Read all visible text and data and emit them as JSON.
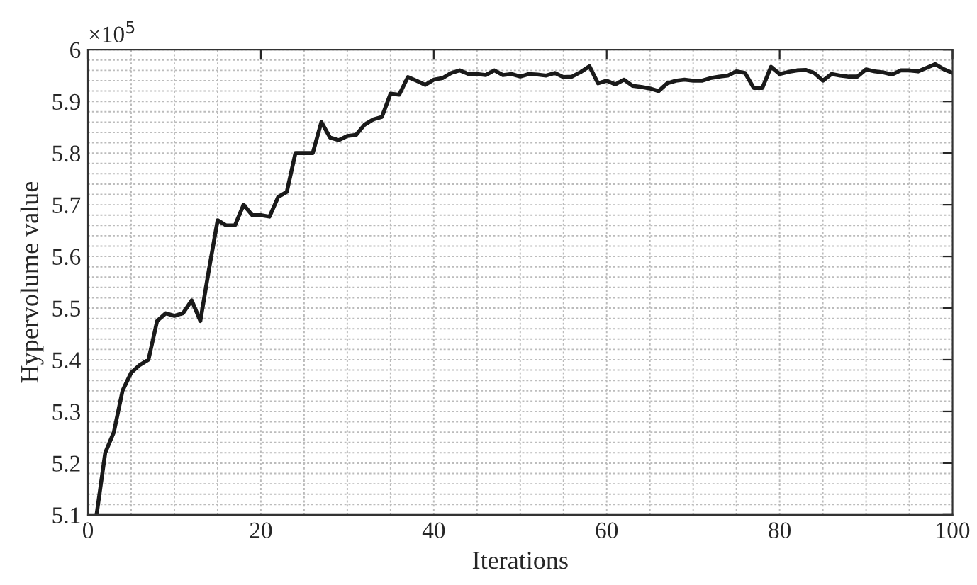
{
  "chart_data": {
    "type": "line",
    "xlabel": "Iterations",
    "ylabel": "Hypervolume value",
    "annotations": [
      "×10$^{5}$"
    ],
    "x": [
      1,
      2,
      3,
      4,
      5,
      6,
      7,
      8,
      9,
      10,
      11,
      12,
      13,
      14,
      15,
      16,
      17,
      18,
      19,
      20,
      21,
      22,
      23,
      24,
      25,
      26,
      27,
      28,
      29,
      30,
      31,
      32,
      33,
      34,
      35,
      36,
      37,
      38,
      39,
      40,
      41,
      42,
      43,
      44,
      45,
      46,
      47,
      48,
      49,
      50,
      51,
      52,
      53,
      54,
      55,
      56,
      57,
      58,
      59,
      60,
      61,
      62,
      63,
      64,
      65,
      66,
      67,
      68,
      69,
      70,
      71,
      72,
      73,
      74,
      75,
      76,
      77,
      78,
      79,
      80,
      81,
      82,
      83,
      84,
      85,
      86,
      87,
      88,
      89,
      90,
      91,
      92,
      93,
      94,
      95,
      96,
      97,
      98,
      99,
      100
    ],
    "series": [
      {
        "color": "#1a1a1a",
        "values": [
          5.1,
          5.22,
          5.26,
          5.34,
          5.375,
          5.39,
          5.4,
          5.475,
          5.49,
          5.485,
          5.49,
          5.515,
          5.475,
          5.575,
          5.67,
          5.66,
          5.66,
          5.7,
          5.68,
          5.68,
          5.677,
          5.715,
          5.725,
          5.8,
          5.8,
          5.8,
          5.86,
          5.83,
          5.825,
          5.833,
          5.835,
          5.855,
          5.865,
          5.87,
          5.915,
          5.913,
          5.947,
          5.94,
          5.932,
          5.942,
          5.945,
          5.955,
          5.96,
          5.953,
          5.953,
          5.951,
          5.96,
          5.951,
          5.953,
          5.948,
          5.953,
          5.952,
          5.95,
          5.955,
          5.947,
          5.948,
          5.957,
          5.968,
          5.935,
          5.94,
          5.933,
          5.942,
          5.93,
          5.928,
          5.925,
          5.92,
          5.935,
          5.94,
          5.942,
          5.94,
          5.94,
          5.945,
          5.948,
          5.95,
          5.958,
          5.955,
          5.926,
          5.926,
          5.967,
          5.953,
          5.957,
          5.96,
          5.961,
          5.955,
          5.94,
          5.953,
          5.95,
          5.948,
          5.948,
          5.962,
          5.958,
          5.956,
          5.952,
          5.96,
          5.96,
          5.958,
          5.965,
          5.972,
          5.962,
          5.955
        ]
      }
    ],
    "xlim": [
      0,
      100
    ],
    "xticks": [
      0,
      20,
      40,
      60,
      80,
      100
    ],
    "ylim": [
      5.1,
      6.0
    ],
    "yticks": [
      5.1,
      5.2,
      5.3,
      5.4,
      5.5,
      5.6,
      5.7,
      5.8,
      5.9,
      6
    ],
    "grid": true,
    "marker": "none",
    "line_style": "solid"
  }
}
